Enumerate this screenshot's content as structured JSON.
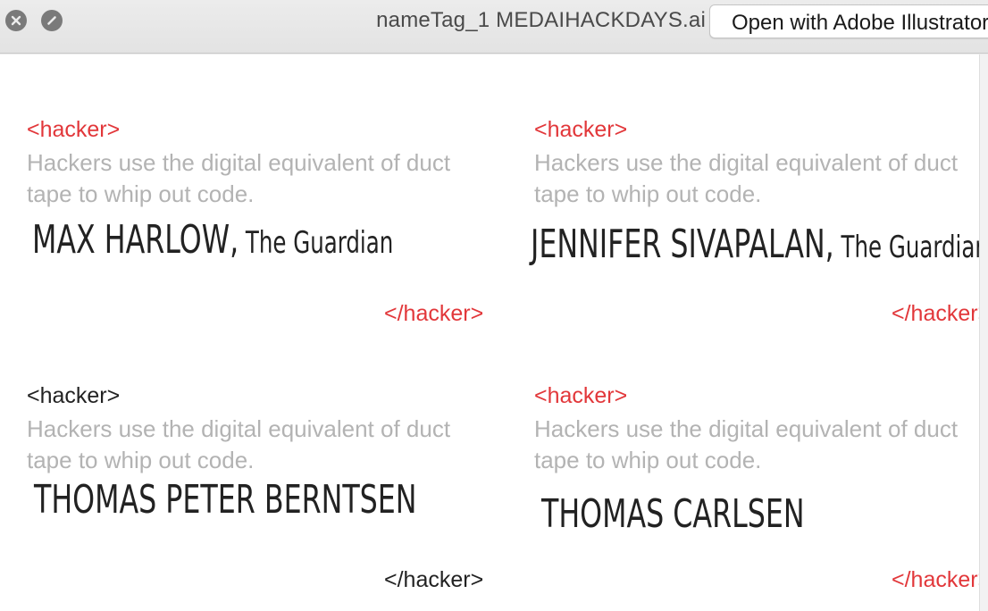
{
  "window": {
    "title": "nameTag_1 MEDAIHACKDAYS.ai",
    "open_button_label": "Open with Adobe Illustrator"
  },
  "colors": {
    "accent_red": "#e2373a",
    "dark_text": "#222222",
    "muted_text": "#b3b3b3"
  },
  "tags": [
    {
      "open_tag": "<hacker>",
      "description_line1": "Hackers use the digital equivalent of duct",
      "description_line2": "tape to whip out code.",
      "name": "MAX HARLOW,",
      "org": " The Guardian",
      "close_tag": "</hacker>",
      "tag_color": "#e2373a"
    },
    {
      "open_tag": "<hacker>",
      "description_line1": "Hackers use the digital equivalent of duct",
      "description_line2": "tape to whip out code.",
      "name": "JENNIFER SIVAPALAN,",
      "org": " The Guardian",
      "close_tag": "</hacker>",
      "tag_color": "#e2373a"
    },
    {
      "open_tag": "<hacker>",
      "description_line1": "Hackers use the digital equivalent of duct",
      "description_line2": "tape to whip out code.",
      "name": "THOMAS PETER BERNTSEN",
      "org": "",
      "close_tag": "</hacker>",
      "tag_color": "#222222"
    },
    {
      "open_tag": "<hacker>",
      "description_line1": "Hackers use the digital equivalent of duct",
      "description_line2": "tape to whip out code.",
      "name": "THOMAS CARLSEN",
      "org": "",
      "close_tag": "</hacker>",
      "tag_color": "#e2373a"
    }
  ]
}
